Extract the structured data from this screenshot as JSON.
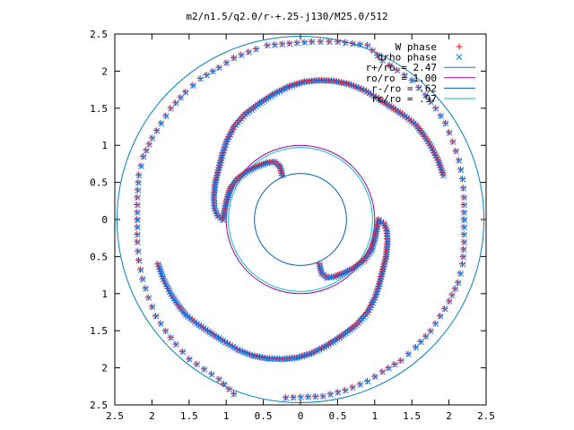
{
  "chart_data": {
    "type": "scatter",
    "title": "m2/n1.5/q2.0/r-+.25-j130/M25.0/512",
    "xlabel": "",
    "ylabel": "",
    "xlim": [
      -2.5,
      2.5
    ],
    "ylim": [
      -2.5,
      2.5
    ],
    "grid": false,
    "legend_position": "top-right",
    "x_tick_values": [
      -2.5,
      -2,
      -1.5,
      -1,
      -0.5,
      0,
      0.5,
      1,
      1.5,
      2,
      2.5
    ],
    "x_tick_labels": [
      "2.5",
      "2",
      "1.5",
      "1",
      "0.5",
      "0",
      "0.5",
      "1",
      "1.5",
      "2",
      "2.5"
    ],
    "y_tick_values": [
      2.5,
      2,
      1.5,
      1,
      0.5,
      0,
      -0.5,
      -1,
      -1.5,
      -2,
      -2.5
    ],
    "y_tick_labels": [
      "2.5",
      "2",
      "1.5",
      "1",
      "0.5",
      "0",
      "0.5",
      "1",
      "1.5",
      "2",
      "2.5"
    ],
    "series": [
      {
        "name": "W phase",
        "marker": "plus",
        "color": "#ff0000"
      },
      {
        "name": "drho phase",
        "marker": "cross",
        "color": "#0080ff"
      }
    ],
    "spiral_arms": [
      [
        [
          -1.05,
          0.0
        ],
        [
          -1.12,
          0.05
        ],
        [
          -1.16,
          0.15
        ],
        [
          -1.17,
          0.3
        ],
        [
          -1.15,
          0.5
        ],
        [
          -1.1,
          0.7
        ],
        [
          -1.05,
          0.9
        ],
        [
          -1.0,
          1.05
        ],
        [
          -0.9,
          1.25
        ],
        [
          -0.75,
          1.42
        ],
        [
          -0.55,
          1.57
        ],
        [
          -0.35,
          1.7
        ],
        [
          -0.15,
          1.8
        ],
        [
          0.05,
          1.86
        ],
        [
          0.25,
          1.88
        ],
        [
          0.45,
          1.87
        ],
        [
          0.65,
          1.83
        ],
        [
          0.85,
          1.75
        ],
        [
          1.05,
          1.63
        ],
        [
          1.25,
          1.5
        ],
        [
          1.4,
          1.4
        ],
        [
          1.55,
          1.28
        ],
        [
          1.65,
          1.15
        ],
        [
          1.75,
          1.0
        ],
        [
          1.85,
          0.8
        ],
        [
          1.92,
          0.6
        ]
      ],
      [
        [
          1.05,
          0.0
        ],
        [
          1.12,
          -0.05
        ],
        [
          1.16,
          -0.15
        ],
        [
          1.17,
          -0.3
        ],
        [
          1.15,
          -0.5
        ],
        [
          1.1,
          -0.7
        ],
        [
          1.05,
          -0.9
        ],
        [
          1.0,
          -1.05
        ],
        [
          0.9,
          -1.25
        ],
        [
          0.75,
          -1.42
        ],
        [
          0.55,
          -1.57
        ],
        [
          0.35,
          -1.7
        ],
        [
          0.15,
          -1.8
        ],
        [
          -0.05,
          -1.86
        ],
        [
          -0.25,
          -1.88
        ],
        [
          -0.45,
          -1.87
        ],
        [
          -0.65,
          -1.83
        ],
        [
          -0.85,
          -1.75
        ],
        [
          -1.05,
          -1.63
        ],
        [
          -1.25,
          -1.5
        ],
        [
          -1.4,
          -1.4
        ],
        [
          -1.55,
          -1.28
        ],
        [
          -1.65,
          -1.15
        ],
        [
          -1.75,
          -1.0
        ],
        [
          -1.85,
          -0.8
        ],
        [
          -1.92,
          -0.6
        ]
      ],
      [
        [
          -1.05,
          0.0
        ],
        [
          -1.0,
          0.25
        ],
        [
          -0.95,
          0.42
        ],
        [
          -0.85,
          0.55
        ],
        [
          -0.72,
          0.65
        ],
        [
          -0.58,
          0.72
        ],
        [
          -0.45,
          0.77
        ],
        [
          -0.35,
          0.78
        ],
        [
          -0.28,
          0.72
        ],
        [
          -0.25,
          0.6
        ]
      ],
      [
        [
          1.05,
          0.0
        ],
        [
          1.0,
          -0.25
        ],
        [
          0.95,
          -0.42
        ],
        [
          0.85,
          -0.55
        ],
        [
          0.72,
          -0.65
        ],
        [
          0.58,
          -0.72
        ],
        [
          0.45,
          -0.77
        ],
        [
          0.35,
          -0.78
        ],
        [
          0.28,
          -0.72
        ],
        [
          0.25,
          -0.6
        ]
      ],
      [
        [
          -2.2,
          0.0
        ],
        [
          -2.2,
          -0.3
        ],
        [
          -2.18,
          -0.55
        ],
        [
          -2.13,
          -0.8
        ],
        [
          -2.05,
          -1.05
        ],
        [
          -1.95,
          -1.3
        ],
        [
          -1.82,
          -1.5
        ],
        [
          -1.68,
          -1.68
        ],
        [
          -1.5,
          -1.88
        ],
        [
          -1.1,
          -2.15
        ],
        [
          -0.9,
          -2.35
        ]
      ],
      [
        [
          2.2,
          0.0
        ],
        [
          2.2,
          0.3
        ],
        [
          2.18,
          0.55
        ],
        [
          2.13,
          0.8
        ],
        [
          2.05,
          1.05
        ],
        [
          1.95,
          1.3
        ],
        [
          1.82,
          1.5
        ],
        [
          1.68,
          1.68
        ],
        [
          1.5,
          1.88
        ],
        [
          1.1,
          2.15
        ],
        [
          0.9,
          2.35
        ],
        [
          0.5,
          2.4
        ],
        [
          0.15,
          2.4
        ],
        [
          -0.45,
          2.35
        ]
      ],
      [
        [
          -2.2,
          0.0
        ],
        [
          -2.2,
          0.3
        ],
        [
          -2.18,
          0.6
        ],
        [
          -2.12,
          0.85
        ],
        [
          -2.0,
          1.1
        ],
        [
          -1.88,
          1.3
        ],
        [
          -1.75,
          1.5
        ],
        [
          -1.55,
          1.72
        ],
        [
          -1.35,
          1.9
        ],
        [
          -1.1,
          2.05
        ],
        [
          -0.9,
          2.18
        ],
        [
          -0.6,
          2.3
        ]
      ],
      [
        [
          2.2,
          0.0
        ],
        [
          2.2,
          -0.3
        ],
        [
          2.18,
          -0.6
        ],
        [
          2.12,
          -0.85
        ],
        [
          2.0,
          -1.1
        ],
        [
          1.88,
          -1.3
        ],
        [
          1.75,
          -1.5
        ],
        [
          1.55,
          -1.72
        ],
        [
          1.35,
          -1.9
        ],
        [
          1.1,
          -2.05
        ],
        [
          0.9,
          -2.18
        ],
        [
          0.6,
          -2.3
        ],
        [
          0.3,
          -2.38
        ],
        [
          -0.2,
          -2.4
        ]
      ]
    ],
    "circles": [
      {
        "name": "r+/ro = 2.47",
        "radius": 2.47,
        "color": "#0080c0"
      },
      {
        "name": "ro/ro = 1.00",
        "radius": 1.0,
        "color": "#a000a0"
      },
      {
        "name": "r-/ro = .62",
        "radius": 0.62,
        "color": "#0060c0"
      },
      {
        "name": "rc/ro = .97",
        "radius": 0.97,
        "color": "#00c0c0"
      }
    ]
  }
}
